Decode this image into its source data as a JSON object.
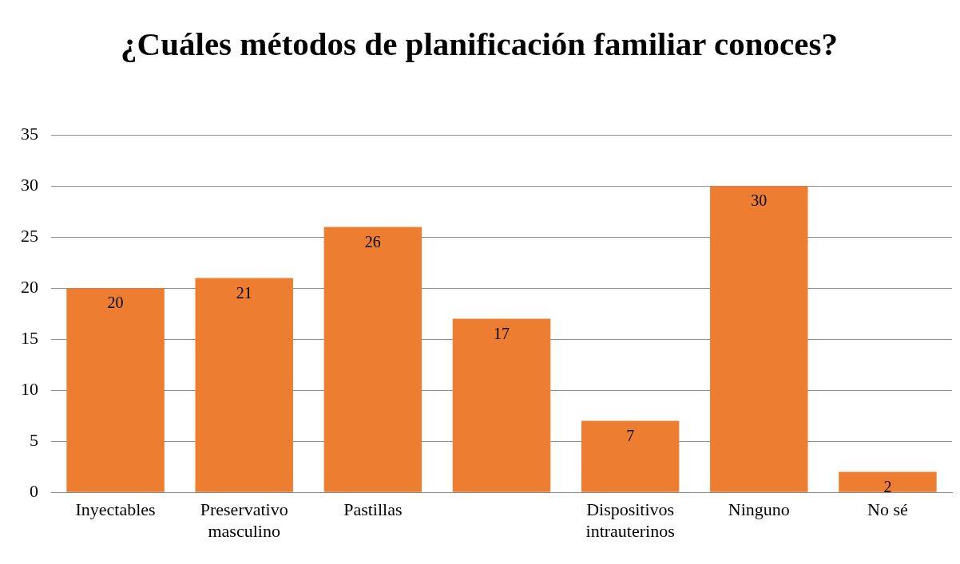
{
  "chart_data": {
    "type": "bar",
    "title": "¿Cuáles métodos de planificación familiar conoces?",
    "categories": [
      "Inyectables",
      "Preservativo masculino",
      "Pastillas",
      null,
      "Dispositivos intrauterinos",
      "Ninguno",
      "No sé"
    ],
    "values": [
      20,
      21,
      26,
      17,
      7,
      30,
      2
    ],
    "color": "#ed7d31",
    "ylim": [
      0,
      35
    ],
    "yticks": [
      0,
      5,
      10,
      15,
      20,
      25,
      30,
      35
    ],
    "grid": "y",
    "data_labels": true,
    "legend": false
  }
}
